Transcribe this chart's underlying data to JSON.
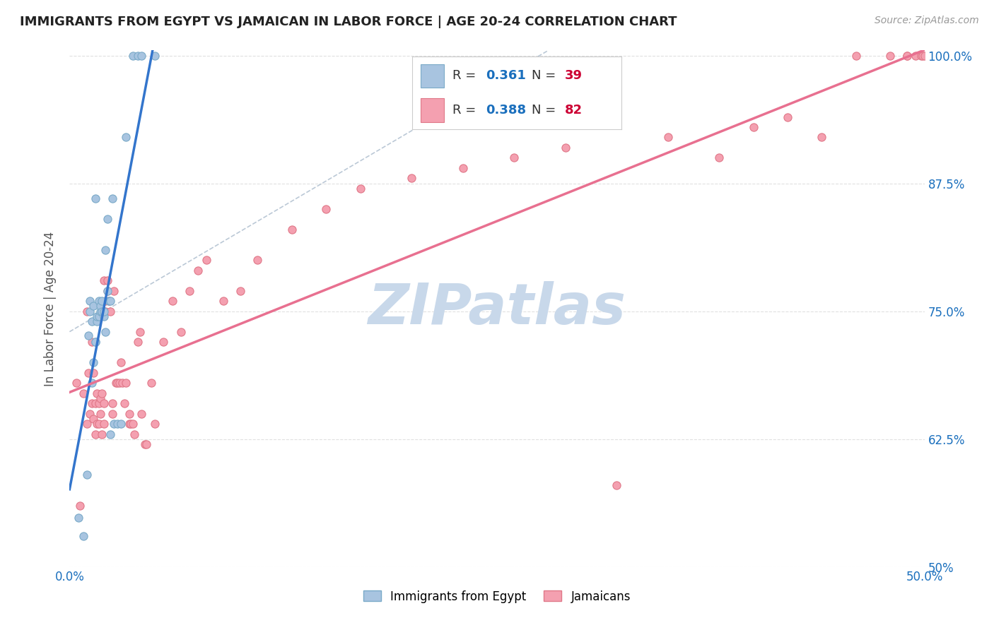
{
  "title": "IMMIGRANTS FROM EGYPT VS JAMAICAN IN LABOR FORCE | AGE 20-24 CORRELATION CHART",
  "source": "Source: ZipAtlas.com",
  "ylabel": "In Labor Force | Age 20-24",
  "xlim": [
    0.0,
    0.5
  ],
  "ylim": [
    0.5,
    1.005
  ],
  "xticks": [
    0.0,
    0.1,
    0.2,
    0.3,
    0.4,
    0.5
  ],
  "xticklabels": [
    "0.0%",
    "",
    "",
    "",
    "",
    "50.0%"
  ],
  "yticks": [
    0.5,
    0.625,
    0.75,
    0.875,
    1.0
  ],
  "egypt_color": "#a8c4e0",
  "jamaica_color": "#f4a0b0",
  "egypt_edge_color": "#7aaac8",
  "jamaica_edge_color": "#e07888",
  "egypt_R": 0.361,
  "egypt_N": 39,
  "jamaica_R": 0.388,
  "jamaica_N": 82,
  "legend_R_color": "#1a6fbd",
  "legend_N_color": "#cc0033",
  "egypt_line_color": "#3375cc",
  "jamaica_line_color": "#e87090",
  "dashed_line_color": "#aabbcc",
  "bg_color": "#ffffff",
  "grid_color": "#e0e0e0",
  "watermark_text": "ZIPatlas",
  "watermark_color": "#c8d8ea",
  "right_ytick_color": "#1a6fbd",
  "egypt_points_x": [
    0.005,
    0.008,
    0.01,
    0.011,
    0.012,
    0.012,
    0.013,
    0.013,
    0.014,
    0.014,
    0.015,
    0.015,
    0.015,
    0.016,
    0.016,
    0.017,
    0.017,
    0.018,
    0.018,
    0.019,
    0.019,
    0.02,
    0.02,
    0.021,
    0.021,
    0.022,
    0.022,
    0.023,
    0.024,
    0.024,
    0.025,
    0.026,
    0.028,
    0.03,
    0.033,
    0.037,
    0.04,
    0.042,
    0.05
  ],
  "egypt_points_y": [
    0.548,
    0.53,
    0.59,
    0.726,
    0.75,
    0.76,
    0.68,
    0.74,
    0.755,
    0.7,
    0.72,
    0.86,
    0.72,
    0.74,
    0.745,
    0.76,
    0.745,
    0.75,
    0.755,
    0.75,
    0.76,
    0.745,
    0.75,
    0.73,
    0.81,
    0.77,
    0.84,
    0.76,
    0.76,
    0.63,
    0.86,
    0.64,
    0.64,
    0.64,
    0.92,
    1.0,
    1.0,
    1.0,
    1.0
  ],
  "jamaica_points_x": [
    0.004,
    0.006,
    0.008,
    0.01,
    0.01,
    0.011,
    0.012,
    0.013,
    0.013,
    0.014,
    0.014,
    0.015,
    0.015,
    0.016,
    0.016,
    0.017,
    0.017,
    0.018,
    0.018,
    0.019,
    0.019,
    0.02,
    0.02,
    0.02,
    0.021,
    0.021,
    0.022,
    0.022,
    0.023,
    0.024,
    0.025,
    0.025,
    0.026,
    0.027,
    0.028,
    0.029,
    0.03,
    0.031,
    0.032,
    0.033,
    0.035,
    0.035,
    0.036,
    0.037,
    0.038,
    0.04,
    0.041,
    0.042,
    0.044,
    0.045,
    0.048,
    0.05,
    0.055,
    0.06,
    0.065,
    0.07,
    0.075,
    0.08,
    0.09,
    0.1,
    0.11,
    0.13,
    0.15,
    0.17,
    0.2,
    0.23,
    0.26,
    0.29,
    0.32,
    0.35,
    0.38,
    0.4,
    0.42,
    0.44,
    0.46,
    0.48,
    0.49,
    0.49,
    0.495,
    0.498,
    0.499,
    0.5
  ],
  "jamaica_points_y": [
    0.68,
    0.56,
    0.67,
    0.64,
    0.75,
    0.69,
    0.65,
    0.66,
    0.72,
    0.645,
    0.69,
    0.63,
    0.66,
    0.64,
    0.67,
    0.64,
    0.66,
    0.65,
    0.665,
    0.63,
    0.67,
    0.64,
    0.66,
    0.78,
    0.75,
    0.76,
    0.77,
    0.78,
    0.76,
    0.75,
    0.65,
    0.66,
    0.77,
    0.68,
    0.68,
    0.68,
    0.7,
    0.68,
    0.66,
    0.68,
    0.64,
    0.65,
    0.64,
    0.64,
    0.63,
    0.72,
    0.73,
    0.65,
    0.62,
    0.62,
    0.68,
    0.64,
    0.72,
    0.76,
    0.73,
    0.77,
    0.79,
    0.8,
    0.76,
    0.77,
    0.8,
    0.83,
    0.85,
    0.87,
    0.88,
    0.89,
    0.9,
    0.91,
    0.58,
    0.92,
    0.9,
    0.93,
    0.94,
    0.92,
    1.0,
    1.0,
    1.0,
    1.0,
    1.0,
    1.0,
    1.0,
    1.0
  ]
}
